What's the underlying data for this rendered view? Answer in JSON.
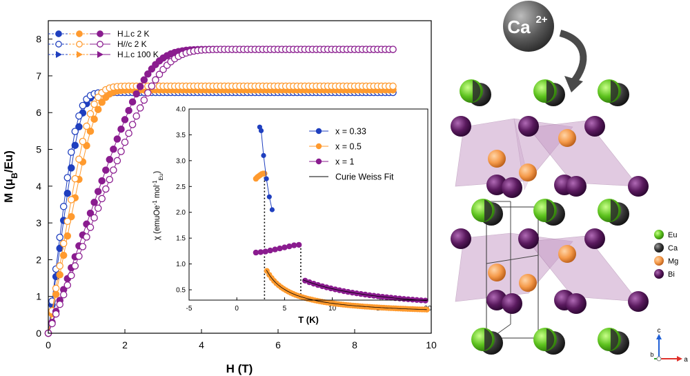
{
  "colors": {
    "blue": "#1f3fbf",
    "orange": "#ff9a2e",
    "purple": "#8a1c8f",
    "black": "#000000",
    "eu": "#5dc21e",
    "ca": "#3a3a3a",
    "mg": "#f59a4a",
    "bi": "#5a1a5e",
    "poly": "#c9a0c9"
  },
  "chart_data": [
    {
      "type": "scatter",
      "xlabel": "H (T)",
      "ylabel": "M (μB/Eu)",
      "xlim": [
        0,
        10
      ],
      "ylim": [
        0,
        8.5
      ],
      "xticks": [
        "0",
        "2",
        "4",
        "6",
        "8",
        "10"
      ],
      "yticks": [
        "0",
        "1",
        "2",
        "3",
        "4",
        "5",
        "6",
        "7",
        "8"
      ],
      "legend_placement": "top-left",
      "legend": [
        {
          "row": 0,
          "label": "H⊥c 2 K",
          "marker": "filled-circle"
        },
        {
          "row": 1,
          "label": "H//c 2 K",
          "marker": "open-circle"
        },
        {
          "row": 2,
          "label": "H⊥c 100 K",
          "marker": "filled-triangle"
        }
      ],
      "series": [
        {
          "group": "x=0.33",
          "color": "blue",
          "marker": "filled",
          "saturation": 6.55,
          "rise": 0.85,
          "sharpness": 2.3
        },
        {
          "group": "x=0.33",
          "color": "blue",
          "marker": "open",
          "saturation": 6.55,
          "rise": 0.75,
          "sharpness": 2.0
        },
        {
          "group": "x=0.5",
          "color": "orange",
          "marker": "filled",
          "saturation": 6.62,
          "rise": 1.25,
          "sharpness": 2.6
        },
        {
          "group": "x=0.5",
          "color": "orange",
          "marker": "open",
          "saturation": 6.72,
          "rise": 1.1,
          "sharpness": 2.3
        },
        {
          "group": "x=1",
          "color": "purple",
          "marker": "filled",
          "saturation": 7.72,
          "rise": 2.6,
          "sharpness": 3.0
        },
        {
          "group": "x=1",
          "color": "purple",
          "marker": "open",
          "saturation": 7.72,
          "rise": 2.95,
          "sharpness": 3.3
        }
      ]
    },
    {
      "type": "scatter",
      "xlabel": "T (K)",
      "ylabel": "χ (emuOe⁻¹ mol⁻¹Eu)",
      "xlim": [
        -5,
        20
      ],
      "ylim": [
        0.3,
        4.0
      ],
      "xticks": [
        "-5",
        "0",
        "5",
        "10",
        "15",
        "20"
      ],
      "yticks": [
        "0.5",
        "1.0",
        "1.5",
        "2.0",
        "2.5",
        "3.0",
        "3.5",
        "4.0"
      ],
      "legend_placement": "top-right",
      "legend": [
        {
          "label": "x = 0.33",
          "color": "blue",
          "kind": "point"
        },
        {
          "label": "x = 0.5",
          "color": "orange",
          "kind": "point"
        },
        {
          "label": "x = 1",
          "color": "purple",
          "kind": "point"
        },
        {
          "label": "Curie Weiss Fit",
          "color": "black",
          "kind": "line"
        }
      ],
      "transitions_K": [
        2.9,
        6.7
      ],
      "series": [
        {
          "name": "x = 0.33",
          "color": "blue",
          "points": [
            [
              2.4,
              3.65
            ],
            [
              2.55,
              3.58
            ],
            [
              2.8,
              3.1
            ],
            [
              3.1,
              2.65
            ],
            [
              3.4,
              2.3
            ],
            [
              3.7,
              2.05
            ]
          ]
        },
        {
          "name": "x = 0.5",
          "color": "orange",
          "peak_K": 2.9,
          "peak_value": 2.75,
          "fit_C": 2.25,
          "fit_theta": 0.55,
          "low_T_points": [
            [
              2.0,
              2.65
            ],
            [
              2.15,
              2.68
            ],
            [
              2.3,
              2.7
            ],
            [
              2.45,
              2.72
            ],
            [
              2.6,
              2.74
            ],
            [
              2.75,
              2.75
            ],
            [
              2.9,
              2.75
            ]
          ]
        },
        {
          "name": "x = 1",
          "color": "purple",
          "peak_K": 6.7,
          "peak_value": 1.37,
          "fit_C": 6.4,
          "fit_theta": -2.3,
          "low_T_points": [
            [
              2.0,
              1.22
            ],
            [
              2.5,
              1.23
            ],
            [
              3.0,
              1.24
            ],
            [
              3.5,
              1.26
            ],
            [
              4.0,
              1.28
            ],
            [
              4.5,
              1.3
            ],
            [
              5.0,
              1.32
            ],
            [
              5.5,
              1.34
            ],
            [
              6.0,
              1.36
            ],
            [
              6.5,
              1.37
            ]
          ]
        }
      ]
    }
  ],
  "structure": {
    "ion_label": "Ca",
    "ion_charge": "2+",
    "legend": [
      {
        "label": "Eu",
        "color": "eu"
      },
      {
        "label": "Ca",
        "color": "ca"
      },
      {
        "label": "Mg",
        "color": "mg"
      },
      {
        "label": "Bi",
        "color": "bi"
      }
    ],
    "axes": {
      "c": "c",
      "a": "a",
      "b": "b"
    }
  }
}
